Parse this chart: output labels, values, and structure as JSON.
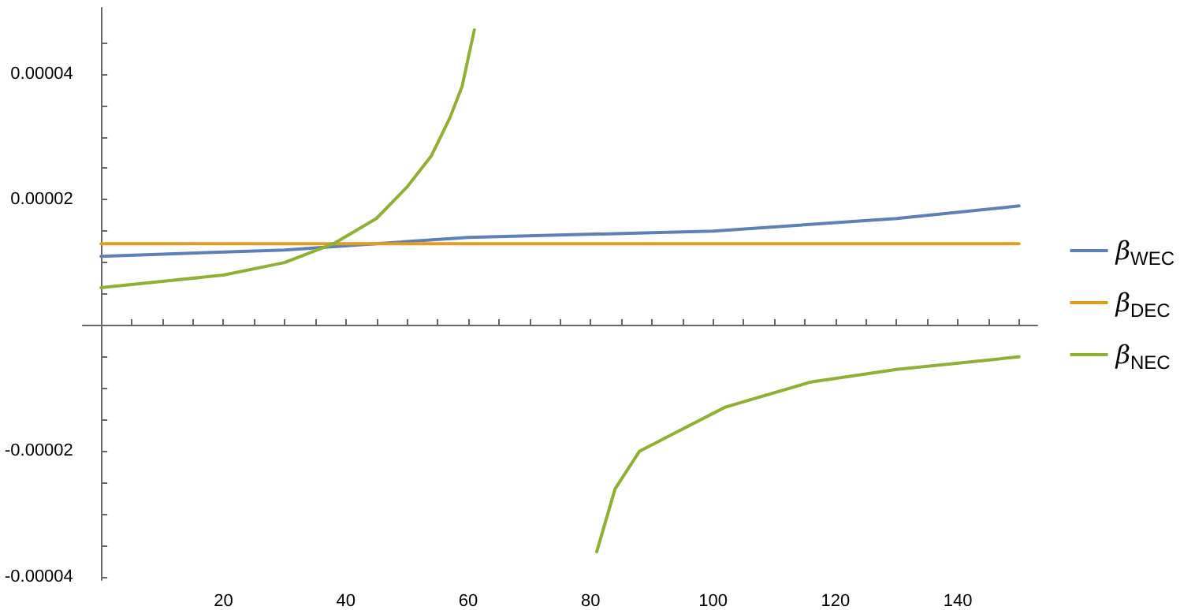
{
  "chart_data": {
    "type": "line",
    "xlim": [
      -3,
      153
    ],
    "ylim": [
      -4.05e-05,
      5.05e-05
    ],
    "xticks": [
      {
        "value": 5,
        "label": null
      },
      {
        "value": 10,
        "label": null
      },
      {
        "value": 15,
        "label": null
      },
      20,
      {
        "value": 25,
        "label": null
      },
      {
        "value": 30,
        "label": null
      },
      {
        "value": 35,
        "label": null
      },
      40,
      {
        "value": 45,
        "label": null
      },
      {
        "value": 50,
        "label": null
      },
      {
        "value": 55,
        "label": null
      },
      60,
      {
        "value": 65,
        "label": null
      },
      {
        "value": 70,
        "label": null
      },
      {
        "value": 75,
        "label": null
      },
      80,
      {
        "value": 85,
        "label": null
      },
      {
        "value": 90,
        "label": null
      },
      {
        "value": 95,
        "label": null
      },
      100,
      {
        "value": 105,
        "label": null
      },
      {
        "value": 110,
        "label": null
      },
      {
        "value": 115,
        "label": null
      },
      120,
      {
        "value": 125,
        "label": null
      },
      {
        "value": 130,
        "label": null
      },
      {
        "value": 135,
        "label": null
      },
      140,
      {
        "value": 145,
        "label": null
      },
      {
        "value": 150,
        "label": null
      }
    ],
    "yticks": [
      {
        "value": -4e-05,
        "label": "-0.00004"
      },
      {
        "value": -3.5e-05,
        "label": null
      },
      {
        "value": -3e-05,
        "label": null
      },
      {
        "value": -2.5e-05,
        "label": null
      },
      {
        "value": -2e-05,
        "label": "-0.00002"
      },
      {
        "value": -1.5e-05,
        "label": null
      },
      {
        "value": -1e-05,
        "label": null
      },
      {
        "value": -5e-06,
        "label": null
      },
      {
        "value": 5e-06,
        "label": null
      },
      {
        "value": 1e-05,
        "label": null
      },
      {
        "value": 1.5e-05,
        "label": null
      },
      {
        "value": 2e-05,
        "label": "0.00002"
      },
      {
        "value": 2.5e-05,
        "label": null
      },
      {
        "value": 3e-05,
        "label": null
      },
      {
        "value": 3.5e-05,
        "label": null
      },
      {
        "value": 4e-05,
        "label": "0.00004"
      },
      {
        "value": 4.5e-05,
        "label": null
      }
    ],
    "legend": "right",
    "grid": false,
    "marker": "none",
    "line_style": "solid",
    "series": [
      {
        "name": "β$_{WEC}$",
        "color": "#5e81b5",
        "x": [
          0,
          30,
          60,
          100,
          130,
          150
        ],
        "values": [
          1.1e-05,
          1.2e-05,
          1.4e-05,
          1.5e-05,
          1.7e-05,
          1.9e-05
        ]
      },
      {
        "name": "β$_{DEC}$",
        "color": "#e19c24",
        "x": [
          0,
          150
        ],
        "values": [
          1.3e-05,
          1.3e-05
        ]
      },
      {
        "name": "β$_{NEC}$",
        "color": "#8fb032",
        "x": [
          0,
          10,
          20,
          30,
          38,
          45,
          50,
          54,
          57,
          59,
          61,
          70,
          81,
          84,
          88,
          94,
          102,
          116,
          130,
          150
        ],
        "values": [
          6e-06,
          7e-06,
          8e-06,
          1e-05,
          1.3e-05,
          1.7e-05,
          2.2e-05,
          2.7e-05,
          3.3e-05,
          3.8e-05,
          4.7e-05,
          null,
          -3.6e-05,
          -2.6e-05,
          -2e-05,
          -1.7e-05,
          -1.3e-05,
          -9e-06,
          -7e-06,
          -5e-06
        ]
      }
    ]
  }
}
